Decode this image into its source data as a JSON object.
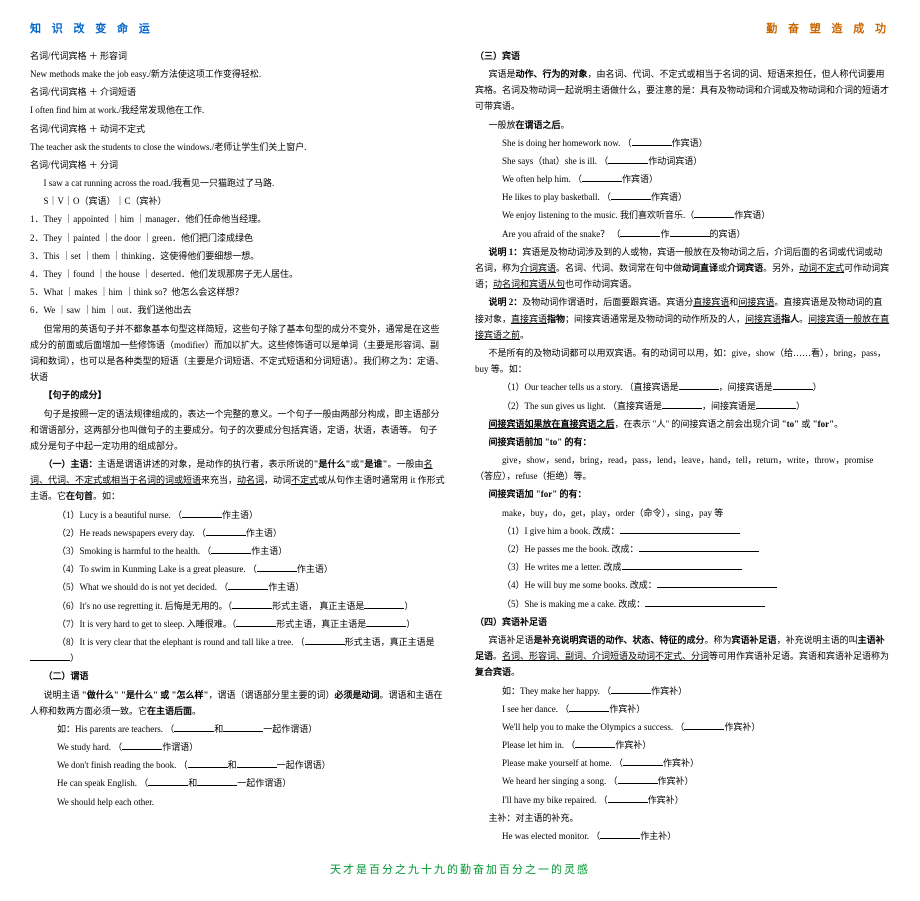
{
  "header": {
    "left": "知 识 改 变 命 运",
    "right": "勤 奋 塑 造 成 功"
  },
  "footer": "天才是百分之九十九的勤奋加百分之一的灵感",
  "left": {
    "l1": "名词/代词宾格 ＋ 形容词",
    "l2": "New methods make the job easy./新方法使这项工作变得轻松.",
    "l3": "名词/代词宾格 ＋ 介词短语",
    "l4": "I often find him at work./我经常发现他在工作.",
    "l5": "名词/代词宾格 ＋ 动词不定式",
    "l6": "The teacher ask the students to close the windows./老师让学生们关上窗户.",
    "l7": "名词/代词宾格 ＋ 分词",
    "l8": "I saw a cat running across the road./我看见一只猫跑过了马路.",
    "l9": "S｜V｜O（宾语）｜C（宾补）",
    "l10": "1．They ｜appointed ｜him ｜manager．他们任命他当经理。",
    "l11": "2．They ｜painted ｜the door ｜green．他们把门漆成绿色",
    "l12": "3．This ｜set ｜them ｜thinking．这使得他们要细想一想。",
    "l13": "4．They ｜found ｜the house ｜deserted．他们发现那房子无人居住。",
    "l14": "5．What ｜makes ｜him ｜think so？他怎么会这样想？",
    "l15": "6．We ｜saw ｜him ｜out．我们送他出去",
    "l16": "但常用的英语句子并不都象基本句型这样简短，这些句子除了基本句型的成分不变外，通常是在这些成分的前面或后面增加一些修饰语（modifier）而加以扩大。这些修饰语可以是单词（主要是形容词、副词和数词），也可以是各种类型的短语（主要是介词短语、不定式短语和分词短语）。我们称之为：定语、状语",
    "juzi_title": "【句子的成分】",
    "juzi_text": "句子是按照一定的语法规律组成的，表达一个完整的意义。一个句子一般由两部分构成，即主语部分和谓语部分，这两部分也叫做句子的主要成分。句子的次要成分包括宾语，定语，状语，表语等。 句子成分是句子中起一定功用的组成部分。",
    "zhuyu_head": "（一）主语：",
    "zhuyu_text1": "主语是谓语讲述的对象，是动作的执行者，表示所说的",
    "zhuyu_bold1": "\"是什么\"",
    "zhuyu_text2": "或",
    "zhuyu_bold2": "\"是谁\"",
    "zhuyu_text3": "。一般由",
    "zhuyu_u1": "名词、代词、不定式或相当于名词的词或短语",
    "zhuyu_text4": "来充当，",
    "zhuyu_u2": "动名词",
    "zhuyu_text5": "，动词",
    "zhuyu_u3": "不定式",
    "zhuyu_text6": "或从句作主语时通常用 it 作形式主语。它",
    "zhuyu_bold3": "在句首",
    "zhuyu_text7": "。如：",
    "ex1": "（1）Lucy is a beautiful nurse.",
    "ex1t": "作主语）",
    "ex2": "（2）He reads newspapers every day.",
    "ex2t": "作主语）",
    "ex3": "（3）Smoking is harmful to the health.",
    "ex3t": "作主语）",
    "ex4": "（4）To swim in Kunming Lake is a great pleasure.",
    "ex4t": "作主语）",
    "ex5": "（5）What we should do is not yet decided.",
    "ex5t": "作主语）",
    "ex6": "（6）It's no use regretting it. 后悔是无用的。（",
    "ex6m": "形式主语，  真正主语是",
    "ex6e": "）",
    "ex7": "（7）It is very hard to get to sleep. 入睡很难。（",
    "ex7m": "形式主语，真正主语是",
    "ex7e": "）",
    "ex8": "（8）It is very clear that the elephant is round and tall like a tree.  （",
    "ex8m": "形式主语，真正主语是",
    "ex8e": "）",
    "weiyu_head": "（二）谓语",
    "weiyu_text1": "说明主语",
    "weiyu_bold": " \"做什么\" \"是什么\" 或 \"怎么样\"",
    "weiyu_text2": "，谓语（谓语部分里主要的词）",
    "weiyu_bold2": "必须是动词",
    "weiyu_text3": "。谓语和主语在人称和数两方面必须一致。它",
    "weiyu_bold3": "在主语后面",
    "weiyu_text4": "。",
    "wex1": "如：His parents are teachers.   （",
    "wex1m": "和",
    "wex1e": "一起作谓语）",
    "wex2": "We study hard.",
    "wex2e": "作谓语）",
    "wex3": "We don't finish reading the book.",
    "wex3m": "和",
    "wex3e": "一起作谓语）",
    "wex4": "He can speak English.",
    "wex4m": "和",
    "wex4e": "一起作谓语）",
    "wex5": "We should help each other."
  },
  "right": {
    "binyu_head": "（三）宾语",
    "binyu_text1": "宾语是",
    "binyu_bold1": "动作、行为的对象",
    "binyu_text2": "，由名词、代词、不定式或相当于名词的词、短语来担任，但人称代词要用宾格。名词及物动词一起说明主语做什么，要注意的是：具有及物动词和介词或及物动词和介词的短语才可带宾语。",
    "binyu_text3": "一般放",
    "binyu_bold2": "在谓语之后",
    "binyu_text4": "。",
    "bex1": "She is doing her homework now.",
    "bex1e": "作宾语）",
    "bex2": "She says（that）she is ill.",
    "bex2e": "作动词宾语）",
    "bex3": "We often help him.",
    "bex3e": "作宾语）",
    "bex4": "He likes to play basketball.",
    "bex4e": "作宾语）",
    "bex5": "We enjoy listening to the music.  我们喜欢听音乐.（",
    "bex5e": "作宾语）",
    "bex6": "Are you afraid of the snake？",
    "bex6m": "作",
    "bex6e": "的宾语）",
    "sm1_head": "说明 1：",
    "sm1_text1": "宾语是及物动词涉及到的人或物，宾语一般放在及物动词之后，介词后面的名词或代词或动名词，称为",
    "sm1_u1": "介词宾语",
    "sm1_text2": "。名词、代词、数词常在句中做",
    "sm1_bold1": "动词直译",
    "sm1_text3": "或",
    "sm1_bold2": "介词宾语",
    "sm1_text4": "。另外，",
    "sm1_u2": "动词不定式",
    "sm1_text5": "可作动词宾语；",
    "sm1_u3": "动名词和宾语从句",
    "sm1_text6": "也可作动词宾语。",
    "sm2_head": "说明 2：",
    "sm2_text1": "及物动词作谓语时，后面要跟宾语。宾语分",
    "sm2_u1": "直接宾语",
    "sm2_text2": "和",
    "sm2_u2": "间接宾语",
    "sm2_text3": "。直接宾语是及物动词的直接对象，",
    "sm2_u3": "直接宾语",
    "sm2_bold1": "指物",
    "sm2_text4": "；间接宾语通常是及物动词的动作所及的人，",
    "sm2_u4": "间接宾语",
    "sm2_bold2": "指人",
    "sm2_text5": "。",
    "sm2_u5": "间接宾语一般放在直接宾语之前",
    "sm2_text6": "。",
    "sm2_text7": "不是所有的及物动词都可以用双宾语。有的动词可以用，如：give，show（给……看），bring，pass，buy 等。如：",
    "sm2_ex1": "（1）Our teacher tells us a story.         （直接宾语是",
    "sm2_ex1m": "，间接宾语是",
    "sm2_ex1e": "）",
    "sm2_ex2": "（2）The sun gives us light.  （直接宾语是",
    "sm2_ex2m": "，间接宾语是",
    "sm2_ex2e": "）",
    "jjby_bold": "间接宾语如果放在直接宾语之后",
    "jjby_text": "，在表示 \"人\" 的间接宾语之前会出现介词",
    "jjby_to": " \"to\" ",
    "jjby_or": "或",
    "jjby_for": " \"for\"",
    "jjby_end": "。",
    "to_head": "间接宾语前加 \"to\" 的有：",
    "to_list": "give，show，send，bring，read，pass，lend，leave，hand，tell，return，write，throw，promise（答应），refuse（拒绝）等。",
    "for_head": "间接宾语加 \"for\" 的有：",
    "for_list": "make，buy，do，get，play，order（命令），sing，pay 等",
    "fex1": "（1）I give him a book.",
    "fex1r": "改成：",
    "fex2": "（2）He passes me the book.",
    "fex2r": "改成：",
    "fex3": "（3）He writes me a letter.",
    "fex3r": "改成",
    "fex4": "（4）He will buy me some books.",
    "fex4r": "改成：",
    "fex5": "（5）She is making me a cake.",
    "fex5r": "改成：",
    "bybz_head": "（四）宾语补足语",
    "bybz_text1": "宾语补足语",
    "bybz_bold1": "是补充说明宾语的动作、状态、特征的成分",
    "bybz_text2": "。称为",
    "bybz_bold2": "宾语补足语",
    "bybz_text3": "，补充说明主语的叫",
    "bybz_bold3": "主语补足语",
    "bybz_text4": "。",
    "bybz_u1": "名词、形容词、副词、介词短语及动词不定式、分词",
    "bybz_text5": "等可用作宾语补足语。宾语和宾语补足语称为",
    "bybz_bold4": "复合宾语",
    "bybz_dot": "。",
    "cex0": "如：They make her happy.",
    "cex0e": "作宾补）",
    "cex1": "I see her dance.",
    "cex1e": "作宾补）",
    "cex2": "We'll help you to make the Olympics a success.",
    "cex2e": "作宾补）",
    "cex3": "Please let him in.",
    "cex3e": "作宾补）",
    "cex4": "Please make yourself at home.",
    "cex4e": "作宾补）",
    "cex5": "We heard her singing a song.",
    "cex5e": "作宾补）",
    "cex6": "I'll have my bike repaired.",
    "cex6e": "作宾补）",
    "zhubu": "主补：对主语的补充。",
    "zex": "He was elected monitor.",
    "zexe": "作主补）"
  }
}
